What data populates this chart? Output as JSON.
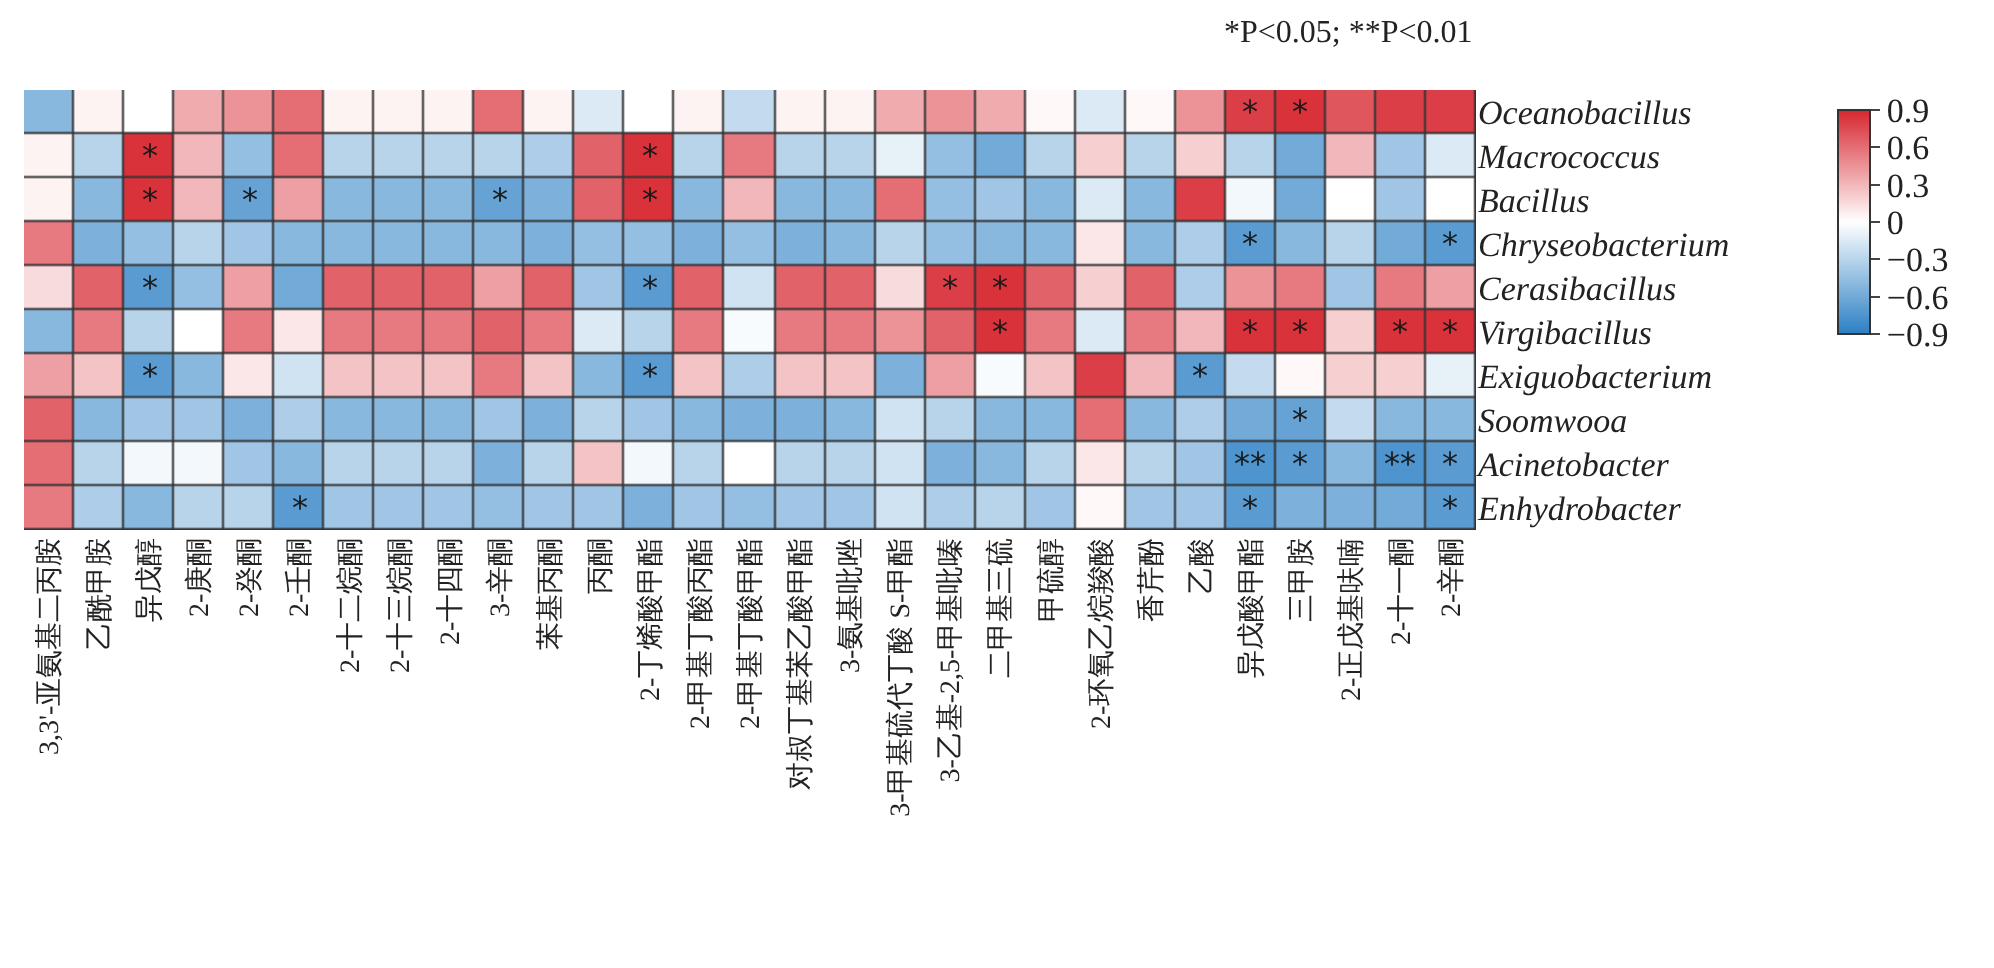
{
  "chart_data": {
    "type": "heatmap",
    "annotations": [
      "*P<0.05; **P<0.01"
    ],
    "categories": [
      "3,3'-亚氨基二丙胺",
      "乙酰甲胺",
      "异戊醇",
      "2-庚酮",
      "2-癸酮",
      "2-壬酮",
      "2-十二烷酮",
      "2-十三烷酮",
      "2-十四酮",
      "3-辛酮",
      "苯基丙酮",
      "丙酮",
      "2-丁烯酸甲酯",
      "2-甲基丁酸丙酯",
      "2-甲基丁酸甲酯",
      "对叔丁基苯乙酸甲酯",
      "3-氨基吡唑",
      "3-甲基硫代丁酸 S-甲酯",
      "3-乙基-2,5-甲基吡嗪",
      "二甲基三硫",
      "甲硫醇",
      "2-环氧乙烷羧酸",
      "香芹酚",
      "乙酸",
      "异戊酸甲酯",
      "三甲胺",
      "2-正戊基呋喃",
      "2-十一酮",
      "2-辛酮"
    ],
    "y_categories": [
      "Oceanobacillus",
      "Macrococcus",
      "Bacillus",
      "Chryseobacterium",
      "Cerasibacillus",
      "Virgibacillus",
      "Exiguobacterium",
      "Soomwooa",
      "Acinetobacter",
      "Enhydrobacter"
    ],
    "cells": [
      [
        -0.5,
        0.05,
        0,
        0.35,
        0.45,
        0.6,
        0.05,
        0.05,
        0.05,
        0.6,
        0.05,
        -0.15,
        0,
        0.05,
        -0.25,
        0.05,
        0.05,
        0.35,
        0.45,
        0.35,
        0.03,
        -0.15,
        0.03,
        0.45,
        0.8,
        0.85,
        0.7,
        0.8,
        0.8
      ],
      [
        0.05,
        -0.3,
        0.85,
        0.3,
        -0.45,
        0.6,
        -0.3,
        -0.3,
        -0.3,
        -0.3,
        -0.35,
        0.65,
        0.85,
        -0.3,
        0.55,
        -0.3,
        -0.3,
        -0.1,
        -0.45,
        -0.6,
        -0.3,
        0.2,
        -0.3,
        0.2,
        -0.3,
        -0.6,
        0.3,
        -0.4,
        -0.15
      ],
      [
        0.05,
        -0.5,
        0.85,
        0.3,
        -0.65,
        0.4,
        -0.5,
        -0.5,
        -0.5,
        -0.65,
        -0.55,
        0.65,
        0.85,
        -0.5,
        0.3,
        -0.5,
        -0.5,
        0.6,
        -0.45,
        -0.4,
        -0.5,
        -0.15,
        -0.5,
        0.8,
        -0.05,
        -0.6,
        0,
        -0.4,
        0
      ],
      [
        0.55,
        -0.55,
        -0.45,
        -0.3,
        -0.4,
        -0.5,
        -0.5,
        -0.5,
        -0.5,
        -0.5,
        -0.55,
        -0.45,
        -0.45,
        -0.55,
        -0.45,
        -0.55,
        -0.5,
        -0.3,
        -0.45,
        -0.5,
        -0.5,
        0.1,
        -0.5,
        -0.35,
        -0.7,
        -0.5,
        -0.3,
        -0.6,
        -0.7
      ],
      [
        0.15,
        0.65,
        -0.7,
        -0.45,
        0.4,
        -0.6,
        0.65,
        0.65,
        0.65,
        0.4,
        0.65,
        -0.4,
        -0.7,
        0.65,
        -0.2,
        0.65,
        0.65,
        0.15,
        0.8,
        0.85,
        0.65,
        0.2,
        0.65,
        -0.35,
        0.45,
        0.55,
        -0.4,
        0.55,
        0.4
      ],
      [
        -0.5,
        0.55,
        -0.3,
        0,
        0.55,
        0.1,
        0.55,
        0.55,
        0.55,
        0.65,
        0.55,
        -0.15,
        -0.3,
        0.55,
        -0.03,
        0.55,
        0.55,
        0.45,
        0.65,
        0.85,
        0.55,
        -0.15,
        0.55,
        0.3,
        0.85,
        0.85,
        0.2,
        0.85,
        0.85
      ],
      [
        0.4,
        0.25,
        -0.7,
        -0.5,
        0.1,
        -0.2,
        0.25,
        0.25,
        0.25,
        0.55,
        0.25,
        -0.5,
        -0.7,
        0.25,
        -0.35,
        0.25,
        0.25,
        -0.55,
        0.4,
        -0.03,
        0.25,
        0.8,
        0.3,
        -0.7,
        -0.25,
        0.03,
        0.2,
        0.2,
        -0.1
      ],
      [
        0.65,
        -0.5,
        -0.4,
        -0.4,
        -0.55,
        -0.35,
        -0.5,
        -0.5,
        -0.5,
        -0.4,
        -0.55,
        -0.3,
        -0.4,
        -0.5,
        -0.55,
        -0.55,
        -0.5,
        -0.2,
        -0.3,
        -0.5,
        -0.5,
        0.6,
        -0.5,
        -0.35,
        -0.6,
        -0.65,
        -0.25,
        -0.5,
        -0.5
      ],
      [
        0.6,
        -0.3,
        -0.05,
        -0.05,
        -0.4,
        -0.5,
        -0.3,
        -0.3,
        -0.3,
        -0.55,
        -0.3,
        0.25,
        -0.05,
        -0.3,
        0,
        -0.3,
        -0.3,
        -0.2,
        -0.55,
        -0.5,
        -0.3,
        0.1,
        -0.3,
        -0.4,
        -0.75,
        -0.7,
        -0.5,
        -0.75,
        -0.7
      ],
      [
        0.55,
        -0.35,
        -0.5,
        -0.3,
        -0.3,
        -0.7,
        -0.4,
        -0.4,
        -0.4,
        -0.45,
        -0.4,
        -0.4,
        -0.55,
        -0.4,
        -0.45,
        -0.4,
        -0.4,
        -0.2,
        -0.35,
        -0.3,
        -0.4,
        0.03,
        -0.4,
        -0.4,
        -0.7,
        -0.55,
        -0.55,
        -0.6,
        -0.7
      ]
    ],
    "cell_labels": [
      [
        null,
        null,
        null,
        null,
        null,
        null,
        null,
        null,
        null,
        null,
        null,
        null,
        null,
        null,
        null,
        null,
        null,
        null,
        null,
        null,
        null,
        null,
        null,
        null,
        "*",
        "*",
        null,
        null,
        null
      ],
      [
        null,
        null,
        "*",
        null,
        null,
        null,
        null,
        null,
        null,
        null,
        null,
        null,
        "*",
        null,
        null,
        null,
        null,
        null,
        null,
        null,
        null,
        null,
        null,
        null,
        null,
        null,
        null,
        null,
        null
      ],
      [
        null,
        null,
        "*",
        null,
        "*",
        null,
        null,
        null,
        null,
        "*",
        null,
        null,
        "*",
        null,
        null,
        null,
        null,
        null,
        null,
        null,
        null,
        null,
        null,
        null,
        null,
        null,
        null,
        null,
        null
      ],
      [
        null,
        null,
        null,
        null,
        null,
        null,
        null,
        null,
        null,
        null,
        null,
        null,
        null,
        null,
        null,
        null,
        null,
        null,
        null,
        null,
        null,
        null,
        null,
        null,
        "*",
        null,
        null,
        null,
        "*"
      ],
      [
        null,
        null,
        "*",
        null,
        null,
        null,
        null,
        null,
        null,
        null,
        null,
        null,
        "*",
        null,
        null,
        null,
        null,
        null,
        "*",
        "*",
        null,
        null,
        null,
        null,
        null,
        null,
        null,
        null,
        null
      ],
      [
        null,
        null,
        null,
        null,
        null,
        null,
        null,
        null,
        null,
        null,
        null,
        null,
        null,
        null,
        null,
        null,
        null,
        null,
        null,
        "*",
        null,
        null,
        null,
        null,
        "*",
        "*",
        null,
        "*",
        "*"
      ],
      [
        null,
        null,
        "*",
        null,
        null,
        null,
        null,
        null,
        null,
        null,
        null,
        null,
        "*",
        null,
        null,
        null,
        null,
        null,
        null,
        null,
        null,
        null,
        null,
        "*",
        null,
        null,
        null,
        null,
        null
      ],
      [
        null,
        null,
        null,
        null,
        null,
        null,
        null,
        null,
        null,
        null,
        null,
        null,
        null,
        null,
        null,
        null,
        null,
        null,
        null,
        null,
        null,
        null,
        null,
        null,
        null,
        "*",
        null,
        null,
        null
      ],
      [
        null,
        null,
        null,
        null,
        null,
        null,
        null,
        null,
        null,
        null,
        null,
        null,
        null,
        null,
        null,
        null,
        null,
        null,
        null,
        null,
        null,
        null,
        null,
        null,
        "**",
        "*",
        null,
        "**",
        "*"
      ],
      [
        null,
        null,
        null,
        null,
        null,
        "*",
        null,
        null,
        null,
        null,
        null,
        null,
        null,
        null,
        null,
        null,
        null,
        null,
        null,
        null,
        null,
        null,
        null,
        null,
        "*",
        null,
        null,
        null,
        "*"
      ]
    ],
    "clim": [
      -0.9,
      0.9
    ],
    "cticks": [
      0.9,
      0.6,
      0.3,
      0,
      {
        "value": -0.3,
        "label": "−0.3"
      },
      {
        "value": -0.6,
        "label": "−0.6"
      },
      {
        "value": -0.9,
        "label": "−0.9"
      }
    ]
  }
}
